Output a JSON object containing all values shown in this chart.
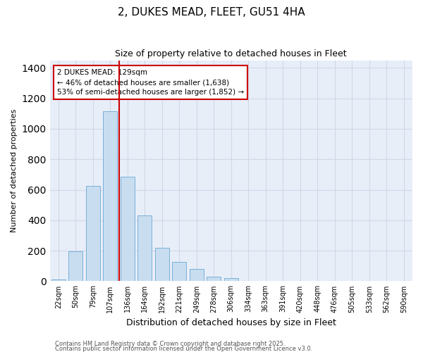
{
  "title1": "2, DUKES MEAD, FLEET, GU51 4HA",
  "title2": "Size of property relative to detached houses in Fleet",
  "xlabel": "Distribution of detached houses by size in Fleet",
  "ylabel": "Number of detached properties",
  "categories": [
    "22sqm",
    "50sqm",
    "79sqm",
    "107sqm",
    "136sqm",
    "164sqm",
    "192sqm",
    "221sqm",
    "249sqm",
    "278sqm",
    "306sqm",
    "334sqm",
    "363sqm",
    "391sqm",
    "420sqm",
    "448sqm",
    "476sqm",
    "505sqm",
    "533sqm",
    "562sqm",
    "590sqm"
  ],
  "values": [
    10,
    195,
    625,
    1115,
    685,
    430,
    220,
    125,
    80,
    30,
    20,
    0,
    0,
    0,
    0,
    0,
    0,
    0,
    0,
    0,
    0
  ],
  "bar_color": "#c8ddf0",
  "bar_edge_color": "#7ab0d8",
  "red_line_index": 4,
  "annotation_line1": "2 DUKES MEAD: 129sqm",
  "annotation_line2": "← 46% of detached houses are smaller (1,638)",
  "annotation_line3": "53% of semi-detached houses are larger (1,852) →",
  "annotation_box_facecolor": "#ffffff",
  "annotation_box_edgecolor": "#cc0000",
  "red_line_color": "#cc0000",
  "ylim_max": 1450,
  "grid_color": "#d0d8e8",
  "bg_color": "#ffffff",
  "plot_bg_color": "#e8eef8",
  "footer1": "Contains HM Land Registry data © Crown copyright and database right 2025.",
  "footer2": "Contains public sector information licensed under the Open Government Licence v3.0."
}
